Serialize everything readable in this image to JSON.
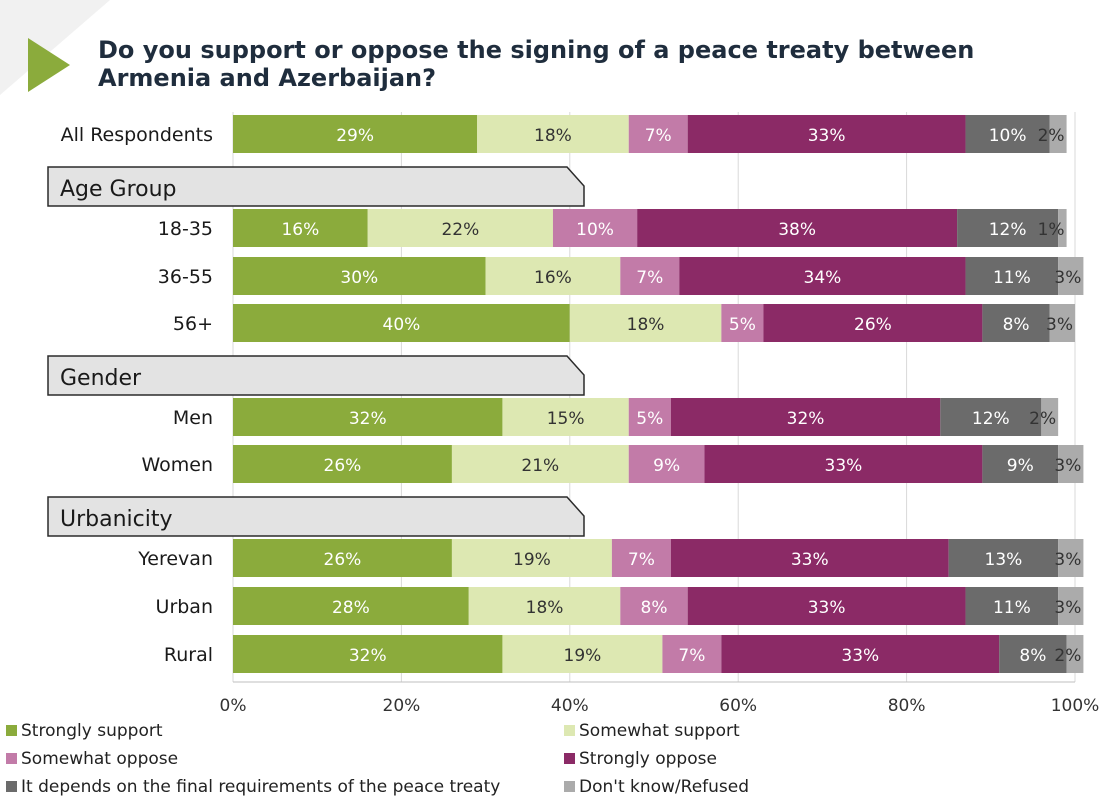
{
  "title": "Do you support or oppose the signing of a peace treaty between Armenia and Azerbaijan?",
  "chart_data": {
    "type": "bar",
    "orientation": "horizontal",
    "stacked": true,
    "title": "Do you support or oppose the signing of a peace treaty between Armenia and Azerbaijan?",
    "xlim": [
      0,
      100
    ],
    "x_ticks": [
      "0%",
      "20%",
      "40%",
      "60%",
      "80%",
      "100%"
    ],
    "legend_position": "bottom",
    "series": [
      {
        "name": "Strongly support",
        "color": "#8bab3c"
      },
      {
        "name": "Somewhat support",
        "color": "#dde8b2"
      },
      {
        "name": "Somewhat oppose",
        "color": "#c27ba8"
      },
      {
        "name": "Strongly oppose",
        "color": "#8b2a66"
      },
      {
        "name": "It depends on the final requirements of the peace treaty",
        "color": "#6b6b6b"
      },
      {
        "name": "Don't know/Refused",
        "color": "#ababab"
      }
    ],
    "rows": [
      {
        "type": "bar",
        "label": "All Respondents",
        "values": [
          29,
          18,
          7,
          33,
          10,
          2
        ]
      },
      {
        "type": "group",
        "label": "Age Group"
      },
      {
        "type": "bar",
        "label": "18-35",
        "values": [
          16,
          22,
          10,
          38,
          12,
          1
        ]
      },
      {
        "type": "bar",
        "label": "36-55",
        "values": [
          30,
          16,
          7,
          34,
          11,
          3
        ]
      },
      {
        "type": "bar",
        "label": "56+",
        "values": [
          40,
          18,
          5,
          26,
          8,
          3
        ]
      },
      {
        "type": "group",
        "label": "Gender"
      },
      {
        "type": "bar",
        "label": "Men",
        "values": [
          32,
          15,
          5,
          32,
          12,
          2
        ]
      },
      {
        "type": "bar",
        "label": "Women",
        "values": [
          26,
          21,
          9,
          33,
          9,
          3
        ]
      },
      {
        "type": "group",
        "label": "Urbanicity"
      },
      {
        "type": "bar",
        "label": "Yerevan",
        "values": [
          26,
          19,
          7,
          33,
          13,
          3
        ]
      },
      {
        "type": "bar",
        "label": "Urban",
        "values": [
          28,
          18,
          8,
          33,
          11,
          3
        ]
      },
      {
        "type": "bar",
        "label": "Rural",
        "values": [
          32,
          19,
          7,
          33,
          8,
          2
        ]
      }
    ]
  }
}
